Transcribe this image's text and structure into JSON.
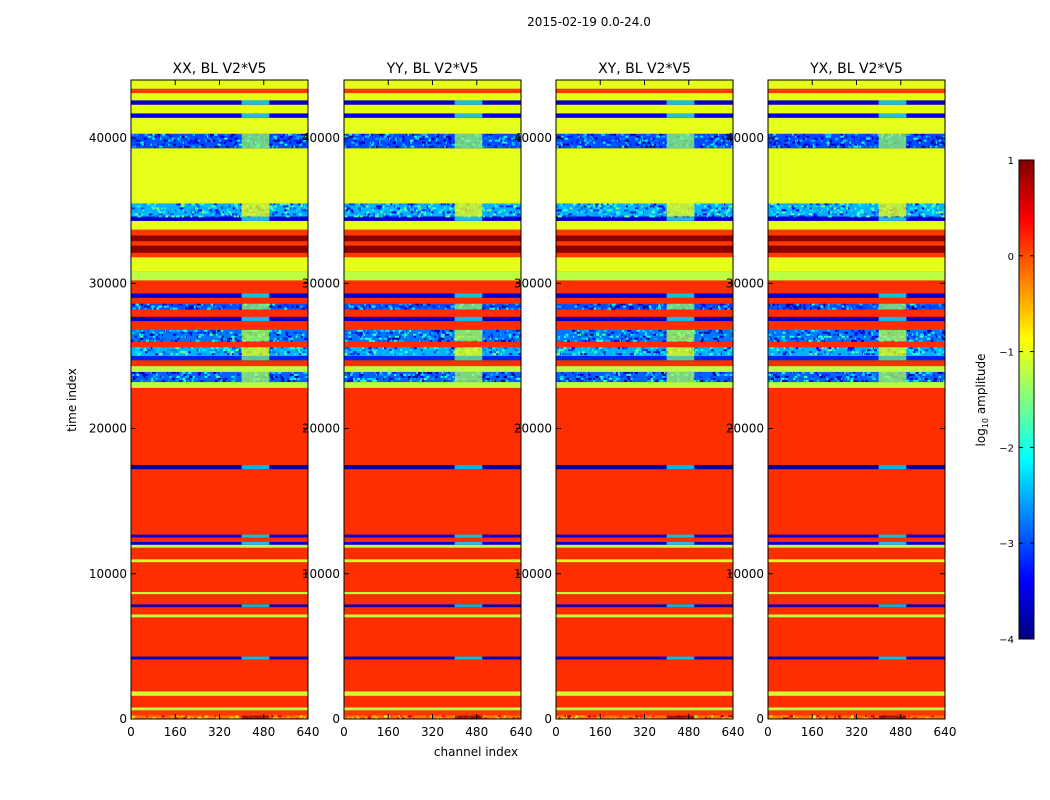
{
  "chart_data": {
    "type": "heatmap",
    "suptitle": "2015-02-19 0.0-24.0",
    "xlabel": "channel index",
    "ylabel": "time index",
    "xlim": [
      0,
      640
    ],
    "ylim": [
      0,
      44000
    ],
    "xticks": [
      0,
      160,
      320,
      480,
      640
    ],
    "yticks": [
      0,
      10000,
      20000,
      30000,
      40000
    ],
    "panels": [
      {
        "title": "XX, BL V2*V5"
      },
      {
        "title": "YY, BL V2*V5"
      },
      {
        "title": "XY, BL V2*V5"
      },
      {
        "title": "YX, BL V2*V5"
      }
    ],
    "colorbar": {
      "label": "log10 amplitude",
      "label_main": "log",
      "label_sub": "10",
      "label_rest": " amplitude",
      "range": [
        -4,
        1
      ],
      "ticks": [
        1,
        0,
        -1,
        -2,
        -3,
        -4
      ],
      "tick_labels": [
        "1",
        "0",
        "−1",
        "−2",
        "−3",
        "−4"
      ],
      "colormap": [
        "#00007f",
        "#0000ff",
        "#007fff",
        "#00ffff",
        "#7fff7f",
        "#ffff00",
        "#ff7f00",
        "#ff0000",
        "#7f0000"
      ]
    },
    "bands": [
      {
        "from": 0,
        "to": 250,
        "log_amp": -0.2,
        "mixed": true
      },
      {
        "from": 250,
        "to": 600,
        "log_amp": 0.1
      },
      {
        "from": 600,
        "to": 800,
        "log_amp": -1.2
      },
      {
        "from": 800,
        "to": 1600,
        "log_amp": 0.15
      },
      {
        "from": 1600,
        "to": 1900,
        "log_amp": -1.1
      },
      {
        "from": 1900,
        "to": 4100,
        "log_amp": 0.15
      },
      {
        "from": 4100,
        "to": 4300,
        "log_amp": -3.7
      },
      {
        "from": 4300,
        "to": 7000,
        "log_amp": 0.15
      },
      {
        "from": 7000,
        "to": 7200,
        "log_amp": -1.2
      },
      {
        "from": 7200,
        "to": 7700,
        "log_amp": 0.15
      },
      {
        "from": 7700,
        "to": 7900,
        "log_amp": -3.8
      },
      {
        "from": 7900,
        "to": 8600,
        "log_amp": 0.15
      },
      {
        "from": 8600,
        "to": 8750,
        "log_amp": -1.2
      },
      {
        "from": 8750,
        "to": 10800,
        "log_amp": 0.15
      },
      {
        "from": 10800,
        "to": 11000,
        "log_amp": -1.1
      },
      {
        "from": 11000,
        "to": 11800,
        "log_amp": 0.15
      },
      {
        "from": 11800,
        "to": 12000,
        "log_amp": -1.2
      },
      {
        "from": 12000,
        "to": 12200,
        "log_amp": -3.5
      },
      {
        "from": 12200,
        "to": 12500,
        "log_amp": 0.15
      },
      {
        "from": 12500,
        "to": 12700,
        "log_amp": -3.6
      },
      {
        "from": 12700,
        "to": 17200,
        "log_amp": 0.15
      },
      {
        "from": 17200,
        "to": 17500,
        "log_amp": -3.8
      },
      {
        "from": 17500,
        "to": 22800,
        "log_amp": 0.15
      },
      {
        "from": 22800,
        "to": 23200,
        "log_amp": -1.2
      },
      {
        "from": 23200,
        "to": 23900,
        "log_amp": -2.9,
        "mixed": true
      },
      {
        "from": 23900,
        "to": 24300,
        "log_amp": -1.2
      },
      {
        "from": 24300,
        "to": 24700,
        "log_amp": 0.15
      },
      {
        "from": 24700,
        "to": 25000,
        "log_amp": -3.2
      },
      {
        "from": 25000,
        "to": 25600,
        "log_amp": -2.5,
        "mixed": true
      },
      {
        "from": 25600,
        "to": 26000,
        "log_amp": 0.15
      },
      {
        "from": 26000,
        "to": 26800,
        "log_amp": -2.8,
        "mixed": true
      },
      {
        "from": 26800,
        "to": 27400,
        "log_amp": 0.15
      },
      {
        "from": 27400,
        "to": 27700,
        "log_amp": -3.6
      },
      {
        "from": 27700,
        "to": 28200,
        "log_amp": 0.15
      },
      {
        "from": 28200,
        "to": 28600,
        "log_amp": -3.0,
        "mixed": true
      },
      {
        "from": 28600,
        "to": 29000,
        "log_amp": 0.15
      },
      {
        "from": 29000,
        "to": 29300,
        "log_amp": -3.6
      },
      {
        "from": 29300,
        "to": 30200,
        "log_amp": 0.15
      },
      {
        "from": 30200,
        "to": 30800,
        "log_amp": -1.2
      },
      {
        "from": 30800,
        "to": 31800,
        "log_amp": -1.0
      },
      {
        "from": 31800,
        "to": 32100,
        "log_amp": 0.1
      },
      {
        "from": 32100,
        "to": 32600,
        "log_amp": 0.95
      },
      {
        "from": 32600,
        "to": 32900,
        "log_amp": 0.1
      },
      {
        "from": 32900,
        "to": 33300,
        "log_amp": 0.95
      },
      {
        "from": 33300,
        "to": 33700,
        "log_amp": 0.1
      },
      {
        "from": 33700,
        "to": 34300,
        "log_amp": -1.0
      },
      {
        "from": 34300,
        "to": 34600,
        "log_amp": -3.6
      },
      {
        "from": 34600,
        "to": 35500,
        "log_amp": -2.5,
        "mixed": true
      },
      {
        "from": 35500,
        "to": 39300,
        "log_amp": -1.0
      },
      {
        "from": 39300,
        "to": 40300,
        "log_amp": -3.0,
        "mixed": true
      },
      {
        "from": 40300,
        "to": 41400,
        "log_amp": -1.0
      },
      {
        "from": 41400,
        "to": 41700,
        "log_amp": -3.5
      },
      {
        "from": 41700,
        "to": 42300,
        "log_amp": -1.0
      },
      {
        "from": 42300,
        "to": 42600,
        "log_amp": -3.6
      },
      {
        "from": 42600,
        "to": 43100,
        "log_amp": -1.0
      },
      {
        "from": 43100,
        "to": 43400,
        "log_amp": 0.1
      },
      {
        "from": 43400,
        "to": 44000,
        "log_amp": -1.0
      }
    ],
    "channel_feature": {
      "from_channel": 400,
      "to_channel": 500
    }
  }
}
